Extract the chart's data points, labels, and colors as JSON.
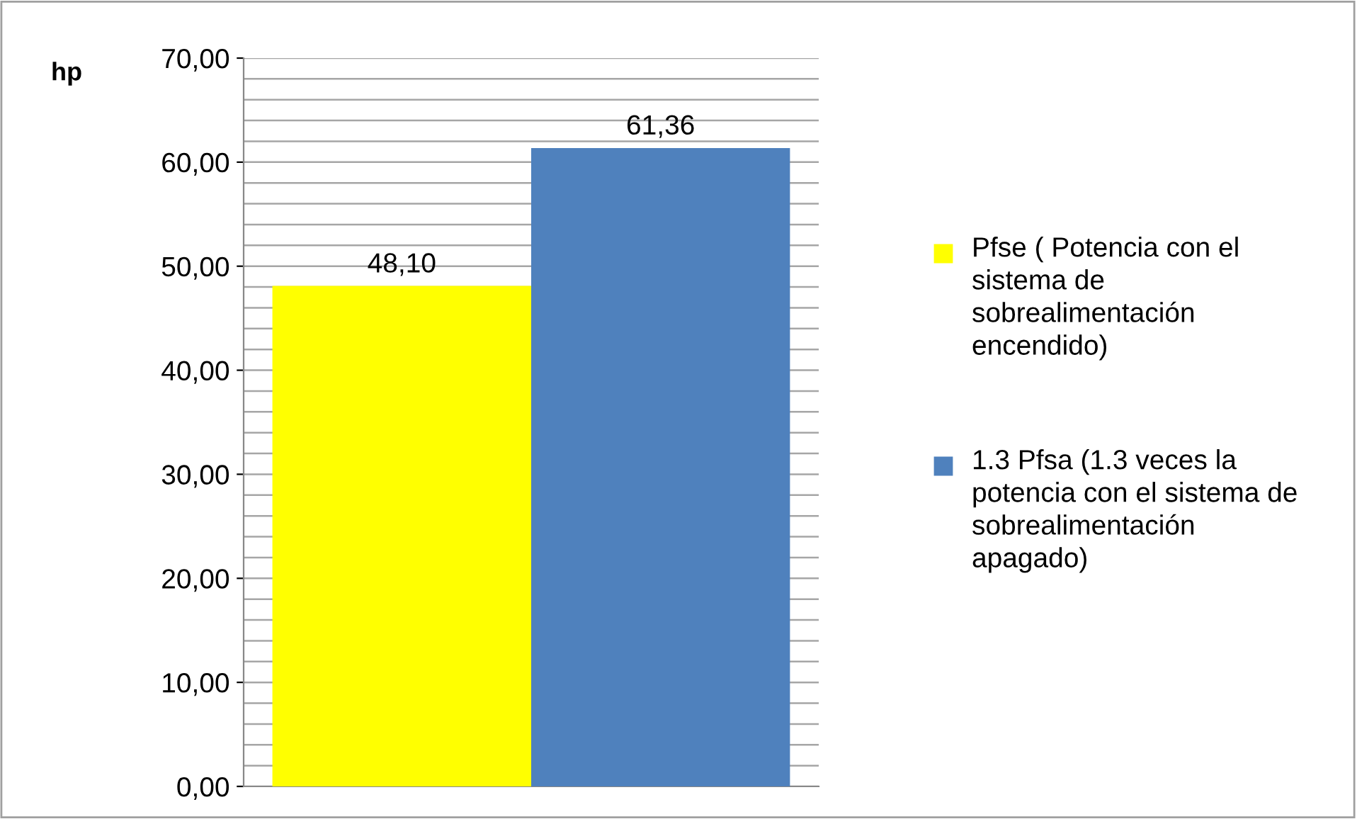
{
  "chart_data": {
    "type": "bar",
    "ylabel": "hp",
    "categories": [
      null
    ],
    "series": [
      {
        "name": "Pfse ( Potencia con el sistema de sobrealimentación encendido)",
        "color": "#ffff00",
        "values": [
          48.1
        ],
        "value_labels": [
          "48,10"
        ]
      },
      {
        "name": "1.3 Pfsa (1.3 veces la potencia con el sistema de sobrealimentación apagado)",
        "color": "#4f81bd",
        "values": [
          61.36
        ],
        "value_labels": [
          "61,36"
        ]
      }
    ],
    "ylim": [
      0,
      70
    ],
    "yticks": [
      {
        "value": 0,
        "label": "0,00"
      },
      {
        "value": 2,
        "label": null
      },
      {
        "value": 4,
        "label": null
      },
      {
        "value": 6,
        "label": null
      },
      {
        "value": 8,
        "label": null
      },
      {
        "value": 10,
        "label": "10,00"
      },
      {
        "value": 12,
        "label": null
      },
      {
        "value": 14,
        "label": null
      },
      {
        "value": 16,
        "label": null
      },
      {
        "value": 18,
        "label": null
      },
      {
        "value": 20,
        "label": "20,00"
      },
      {
        "value": 22,
        "label": null
      },
      {
        "value": 24,
        "label": null
      },
      {
        "value": 26,
        "label": null
      },
      {
        "value": 28,
        "label": null
      },
      {
        "value": 30,
        "label": "30,00"
      },
      {
        "value": 32,
        "label": null
      },
      {
        "value": 34,
        "label": null
      },
      {
        "value": 36,
        "label": null
      },
      {
        "value": 38,
        "label": null
      },
      {
        "value": 40,
        "label": "40,00"
      },
      {
        "value": 42,
        "label": null
      },
      {
        "value": 44,
        "label": null
      },
      {
        "value": 46,
        "label": null
      },
      {
        "value": 48,
        "label": null
      },
      {
        "value": 50,
        "label": "50,00"
      },
      {
        "value": 52,
        "label": null
      },
      {
        "value": 54,
        "label": null
      },
      {
        "value": 56,
        "label": null
      },
      {
        "value": 58,
        "label": null
      },
      {
        "value": 60,
        "label": "60,00"
      },
      {
        "value": 62,
        "label": null
      },
      {
        "value": 64,
        "label": null
      },
      {
        "value": 66,
        "label": null
      },
      {
        "value": 68,
        "label": null
      },
      {
        "value": 70,
        "label": "70,00"
      }
    ],
    "grid": "y",
    "legend": "right"
  }
}
